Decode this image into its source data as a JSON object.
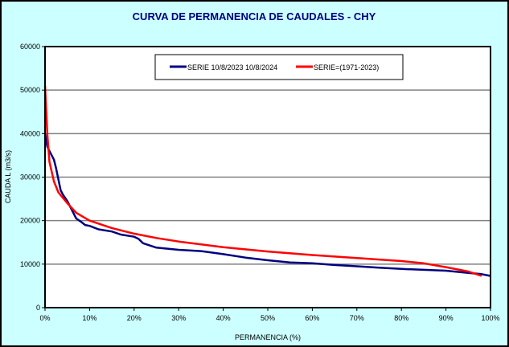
{
  "chart_data": {
    "type": "line",
    "title": "CURVA DE PERMANENCIA DE CAUDALES - CHY",
    "xlabel": "PERMANENCIA (%)",
    "ylabel": "CAUDA L (m3/s)",
    "xlim": [
      0,
      100
    ],
    "ylim": [
      0,
      60000
    ],
    "xticks": [
      "0%",
      "10%",
      "20%",
      "30%",
      "40%",
      "50%",
      "60%",
      "70%",
      "80%",
      "90%",
      "100%"
    ],
    "yticks": [
      "0",
      "10000",
      "20000",
      "30000",
      "40000",
      "50000",
      "60000"
    ],
    "grid": "horizontal",
    "legend_placement": "top-center",
    "series": [
      {
        "name": "SERIE 10/8/2023 10/8/2024",
        "color": "#000080",
        "x": [
          0,
          0.5,
          1,
          2,
          2.5,
          3,
          3.5,
          4,
          5,
          6,
          7,
          8,
          9,
          10,
          12,
          15,
          17,
          20,
          21,
          22,
          25,
          30,
          35,
          40,
          45,
          50,
          55,
          60,
          65,
          70,
          75,
          80,
          85,
          90,
          95,
          98,
          100
        ],
        "y": [
          40000,
          37000,
          36000,
          34000,
          32000,
          29500,
          27000,
          26000,
          24500,
          22500,
          20500,
          19800,
          19000,
          18800,
          18000,
          17500,
          16800,
          16300,
          15800,
          14800,
          13800,
          13300,
          13000,
          12300,
          11500,
          10900,
          10400,
          10200,
          9800,
          9500,
          9200,
          8900,
          8700,
          8500,
          8000,
          7700,
          7300
        ]
      },
      {
        "name": "SERIE=(1971-2023)",
        "color": "#ff0000",
        "x": [
          0,
          0.5,
          1,
          2,
          3,
          5,
          7,
          10,
          15,
          20,
          25,
          30,
          40,
          50,
          60,
          70,
          80,
          85,
          90,
          95,
          98
        ],
        "y": [
          51000,
          40000,
          33500,
          29000,
          26500,
          24000,
          21800,
          20000,
          18300,
          17000,
          16000,
          15200,
          13900,
          12900,
          12100,
          11400,
          10700,
          10200,
          9300,
          8300,
          7300
        ]
      }
    ]
  }
}
